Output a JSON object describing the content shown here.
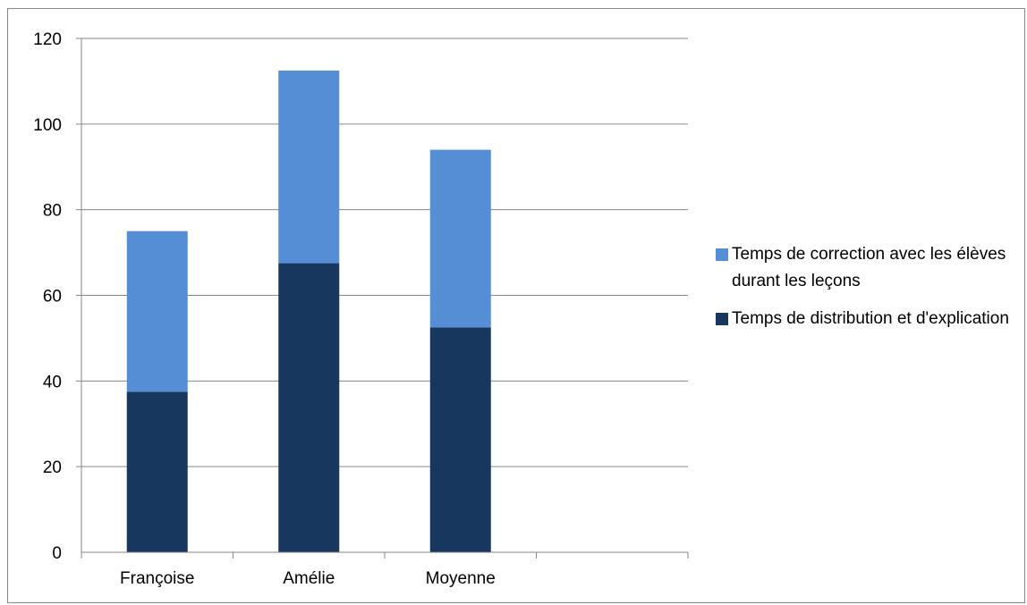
{
  "chart_data": {
    "type": "bar",
    "stacked": true,
    "categories": [
      "Françoise",
      "Amélie",
      "Moyenne"
    ],
    "series": [
      {
        "name": "Temps de distribution et d'explication",
        "values": [
          37.5,
          67.5,
          52.5
        ],
        "color": "#17375E"
      },
      {
        "name": "Temps de correction avec les élèves durant les leçons",
        "values": [
          37.5,
          45,
          41.5
        ],
        "color": "#558ED5"
      }
    ],
    "y_ticks": [
      "0",
      "20",
      "40",
      "60",
      "80",
      "100",
      "120"
    ],
    "ylim": [
      0,
      120
    ],
    "grid": true,
    "legend_position": "right",
    "title": "",
    "xlabel": "",
    "ylabel": ""
  }
}
